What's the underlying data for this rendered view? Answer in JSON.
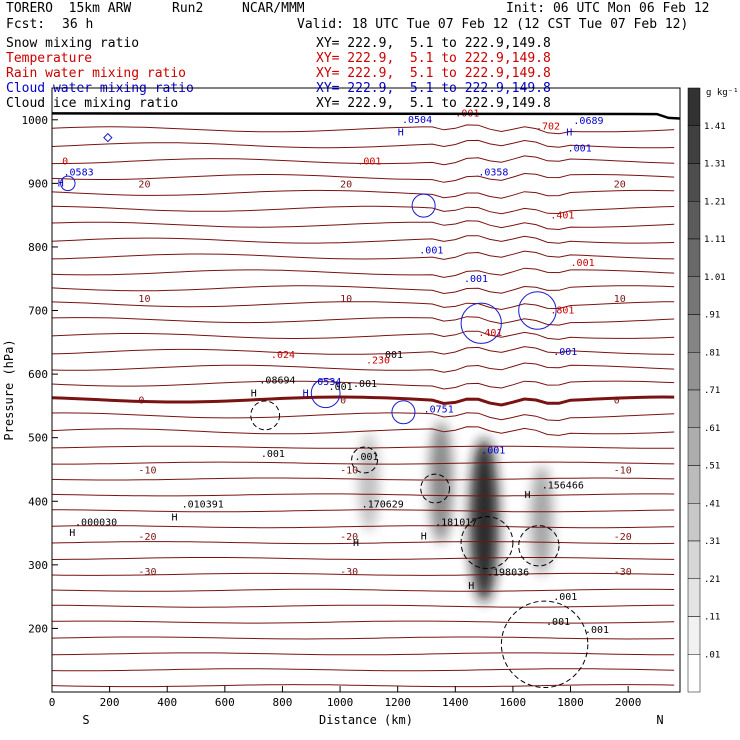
{
  "header": {
    "model": "TORERO  15km ARW",
    "run": "Run2",
    "org": "NCAR/MMM",
    "init": "Init: 06 UTC Mon 06 Feb 12",
    "fcst_label": "Fcst:",
    "fcst_value": "36 h",
    "valid": "Valid: 18 UTC Tue 07 Feb 12 (12 CST Tue 07 Feb 12)"
  },
  "legend": [
    {
      "name": "Snow mixing ratio",
      "xy": "XY= 222.9,  5.1 to 222.9,149.8",
      "color": "#000000"
    },
    {
      "name": "Temperature",
      "xy": "XY= 222.9,  5.1 to 222.9,149.8",
      "color": "#cc0000"
    },
    {
      "name": "Rain water mixing ratio",
      "xy": "XY= 222.9,  5.1 to 222.9,149.8",
      "color": "#cc0000"
    },
    {
      "name": "Cloud water mixing ratio",
      "xy": "XY= 222.9,  5.1 to 222.9,149.8",
      "color": "#0000cc"
    },
    {
      "name": "Cloud ice mixing ratio",
      "xy": "XY= 222.9,  5.1 to 222.9,149.8",
      "color": "#000000"
    }
  ],
  "chart_data": {
    "type": "cross-section",
    "xlabel": "Distance (km)",
    "ylabel": "Pressure (hPa)",
    "xlim": [
      0,
      2180
    ],
    "ylim": [
      1050,
      100
    ],
    "x_ticks": [
      0,
      200,
      400,
      600,
      800,
      1000,
      1200,
      1400,
      1600,
      1800,
      2000
    ],
    "y_ticks": [
      200,
      300,
      400,
      500,
      600,
      700,
      800,
      900,
      1000
    ],
    "left_end": "S",
    "right_end": "N",
    "colorbar_unit": "g kg⁻¹",
    "colorbar_levels": [
      "1.41",
      "1.31",
      "1.21",
      "1.11",
      "1.01",
      ".91",
      ".81",
      ".71",
      ".61",
      ".51",
      ".41",
      ".31",
      ".21",
      ".11",
      ".01"
    ],
    "snow_max": [
      {
        "x": 1500,
        "p": 370,
        "value": 1.4
      },
      {
        "x": 1350,
        "p": 430,
        "value": 0.7
      },
      {
        "x": 1700,
        "p": 370,
        "value": 0.5
      },
      {
        "x": 1100,
        "p": 430,
        "value": 0.3
      }
    ],
    "isotherms": [
      {
        "label": "-30",
        "p": 290
      },
      {
        "label": "-20",
        "p": 345
      },
      {
        "label": "-10",
        "p": 450
      },
      {
        "label": "0",
        "p": 560
      },
      {
        "label": "10",
        "p": 720
      },
      {
        "label": "20",
        "p": 900
      }
    ],
    "annotations": [
      {
        "text": "H",
        "x": 60,
        "p": 345,
        "color": "#000000"
      },
      {
        "text": ".000030",
        "x": 80,
        "p": 362,
        "color": "#000000"
      },
      {
        "text": "H",
        "x": 415,
        "p": 370,
        "color": "#000000"
      },
      {
        "text": ".010391",
        "x": 450,
        "p": 390,
        "color": "#000000"
      },
      {
        "text": "H",
        "x": 1045,
        "p": 330,
        "color": "#000000"
      },
      {
        "text": ".170629",
        "x": 1075,
        "p": 390,
        "color": "#000000"
      },
      {
        "text": "H",
        "x": 1280,
        "p": 340,
        "color": "#000000"
      },
      {
        "text": ".181017",
        "x": 1330,
        "p": 362,
        "color": "#000000"
      },
      {
        "text": "H",
        "x": 1445,
        "p": 262,
        "color": "#000000"
      },
      {
        "text": ".198036",
        "x": 1510,
        "p": 283,
        "color": "#000000"
      },
      {
        "text": "H",
        "x": 1640,
        "p": 405,
        "color": "#000000"
      },
      {
        "text": ".156466",
        "x": 1700,
        "p": 420,
        "color": "#000000"
      },
      {
        "text": ".001",
        "x": 725,
        "p": 470,
        "color": "#000000"
      },
      {
        "text": ".001",
        "x": 1050,
        "p": 465,
        "color": "#000000"
      },
      {
        "text": ".001",
        "x": 1740,
        "p": 245,
        "color": "#000000"
      },
      {
        "text": ".001",
        "x": 1715,
        "p": 205,
        "color": "#000000"
      },
      {
        "text": ".001",
        "x": 1850,
        "p": 193,
        "color": "#000000"
      },
      {
        "text": "H",
        "x": 690,
        "p": 565,
        "color": "#000000"
      },
      {
        "text": ".08694",
        "x": 720,
        "p": 585,
        "color": "#000000"
      },
      {
        "text": ".001",
        "x": 960,
        "p": 575,
        "color": "#000000"
      },
      {
        "text": ".001",
        "x": 1045,
        "p": 580,
        "color": "#000000"
      },
      {
        "text": ".001",
        "x": 1135,
        "p": 625,
        "color": "#000000"
      },
      {
        "text": "H",
        "x": 870,
        "p": 565,
        "color": "#0000cc"
      },
      {
        "text": ".0534",
        "x": 900,
        "p": 583,
        "color": "#0000cc"
      },
      {
        "text": ".0751",
        "x": 1290,
        "p": 540,
        "color": "#0000cc"
      },
      {
        "text": ".001",
        "x": 1490,
        "p": 475,
        "color": "#0000cc"
      },
      {
        "text": ".001",
        "x": 1430,
        "p": 745,
        "color": "#0000cc"
      },
      {
        "text": ".001",
        "x": 1275,
        "p": 790,
        "color": "#0000cc"
      },
      {
        "text": ".001",
        "x": 1740,
        "p": 630,
        "color": "#0000cc"
      },
      {
        "text": "H",
        "x": 20,
        "p": 895,
        "color": "#0000cc"
      },
      {
        "text": ".0583",
        "x": 40,
        "p": 912,
        "color": "#0000cc"
      },
      {
        "text": ".0358",
        "x": 1480,
        "p": 912,
        "color": "#0000cc"
      },
      {
        "text": "H",
        "x": 1200,
        "p": 975,
        "color": "#0000cc"
      },
      {
        "text": ".0504",
        "x": 1215,
        "p": 995,
        "color": "#0000cc"
      },
      {
        "text": "H",
        "x": 1785,
        "p": 975,
        "color": "#0000cc"
      },
      {
        "text": ".0689",
        "x": 1810,
        "p": 993,
        "color": "#0000cc"
      },
      {
        "text": ".001",
        "x": 1790,
        "p": 950,
        "color": "#0000cc"
      },
      {
        "text": ".024",
        "x": 760,
        "p": 625,
        "color": "#cc0000"
      },
      {
        "text": ".230",
        "x": 1090,
        "p": 617,
        "color": "#cc0000"
      },
      {
        "text": ".401",
        "x": 1480,
        "p": 660,
        "color": "#cc0000"
      },
      {
        "text": ".801",
        "x": 1730,
        "p": 695,
        "color": "#cc0000"
      },
      {
        "text": ".001",
        "x": 1800,
        "p": 770,
        "color": "#cc0000"
      },
      {
        "text": ".401",
        "x": 1730,
        "p": 845,
        "color": "#cc0000"
      },
      {
        "text": ".001",
        "x": 1060,
        "p": 930,
        "color": "#cc0000"
      },
      {
        "text": ".001",
        "x": 1400,
        "p": 1005,
        "color": "#cc0000"
      },
      {
        "text": ".702",
        "x": 1680,
        "p": 985,
        "color": "#cc0000"
      },
      {
        "text": "0",
        "x": 35,
        "p": 930,
        "color": "#cc0000"
      }
    ]
  }
}
